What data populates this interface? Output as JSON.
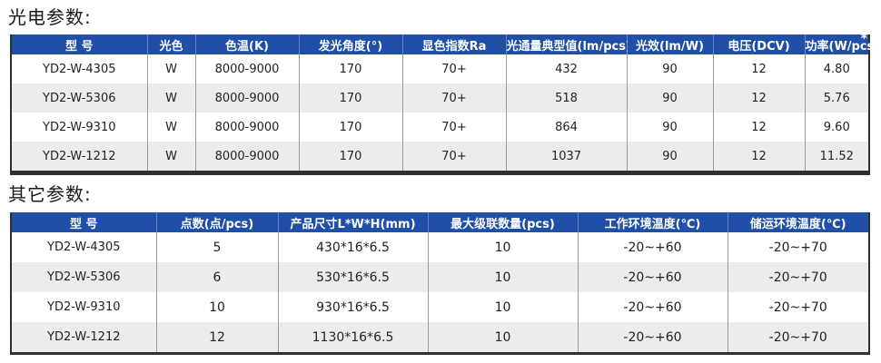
{
  "section1": {
    "title": "光电参数:",
    "headers": [
      "型 号",
      "光色",
      "色温(K)",
      "发光角度(°)",
      "显色指数Ra",
      "光通量典型值(lm/pcs)",
      "光效(lm/W)",
      "电压(DCV)",
      "功率(W/pcs)"
    ],
    "header_mark": "*",
    "rows": [
      [
        "YD2-W-4305",
        "W",
        "8000-9000",
        "170",
        "70+",
        "432",
        "90",
        "12",
        "4.80"
      ],
      [
        "YD2-W-5306",
        "W",
        "8000-9000",
        "170",
        "70+",
        "518",
        "90",
        "12",
        "5.76"
      ],
      [
        "YD2-W-9310",
        "W",
        "8000-9000",
        "170",
        "70+",
        "864",
        "90",
        "12",
        "9.60"
      ],
      [
        "YD2-W-1212",
        "W",
        "8000-9000",
        "170",
        "70+",
        "1037",
        "90",
        "12",
        "11.52"
      ]
    ]
  },
  "section2": {
    "title": "其它参数:",
    "headers": [
      "型 号",
      "点数(点/pcs)",
      "产品尺寸L*W*H(mm)",
      "最大级联数量(pcs)",
      "工作环境温度(℃)",
      "储运环境温度(℃)"
    ],
    "rows": [
      [
        "YD2-W-4305",
        "5",
        "430*16*6.5",
        "10",
        "-20~+60",
        "-20~+70"
      ],
      [
        "YD2-W-5306",
        "6",
        "530*16*6.5",
        "10",
        "-20~+60",
        "-20~+70"
      ],
      [
        "YD2-W-9310",
        "10",
        "930*16*6.5",
        "10",
        "-20~+60",
        "-20~+70"
      ],
      [
        "YD2-W-1212",
        "12",
        "1130*16*6.5",
        "10",
        "-20~+60",
        "-20~+70"
      ]
    ]
  }
}
